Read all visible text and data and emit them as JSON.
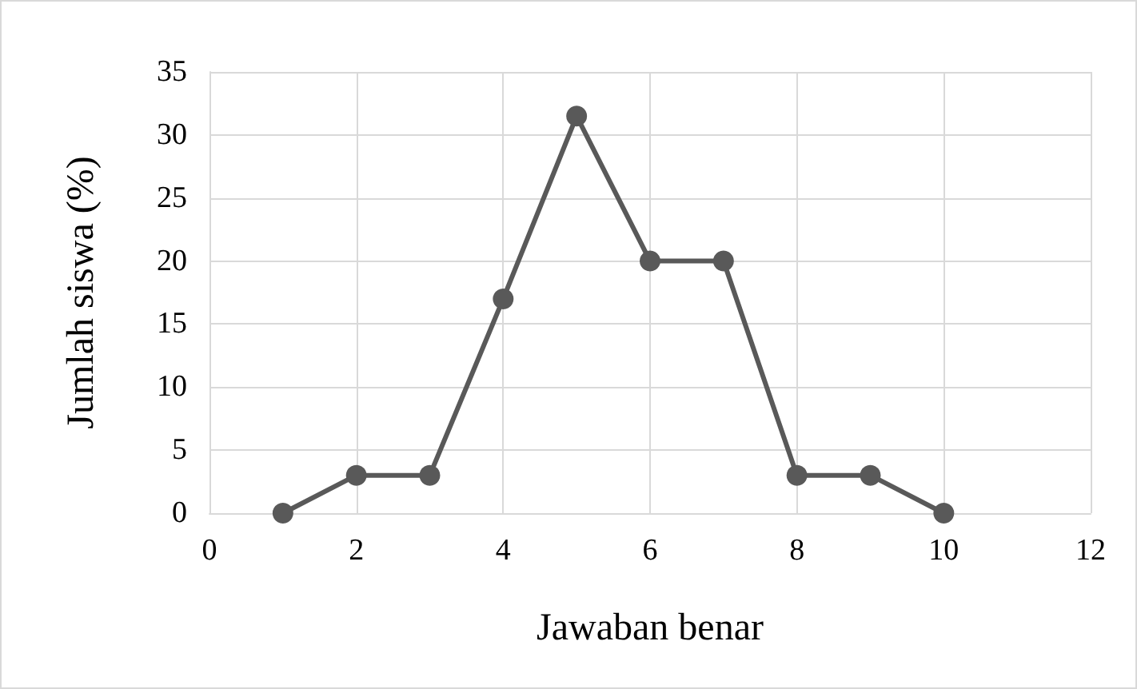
{
  "chart_data": {
    "type": "line",
    "xlabel": "Jawaban benar",
    "ylabel": "Jumlah siswa (%)",
    "x": [
      1,
      2,
      3,
      4,
      5,
      6,
      7,
      8,
      9,
      10
    ],
    "series": [
      {
        "color": "#595959",
        "values": [
          0,
          3,
          3,
          17,
          31.5,
          20,
          20,
          3,
          3,
          0
        ]
      }
    ],
    "xlim": [
      0,
      12
    ],
    "xticks": [
      0,
      2,
      4,
      6,
      8,
      10,
      12
    ],
    "ylim": [
      0,
      35
    ],
    "yticks": [
      0,
      5,
      10,
      15,
      20,
      25,
      30,
      35
    ],
    "grid": true,
    "marker": "circle",
    "line_style": "solid"
  }
}
